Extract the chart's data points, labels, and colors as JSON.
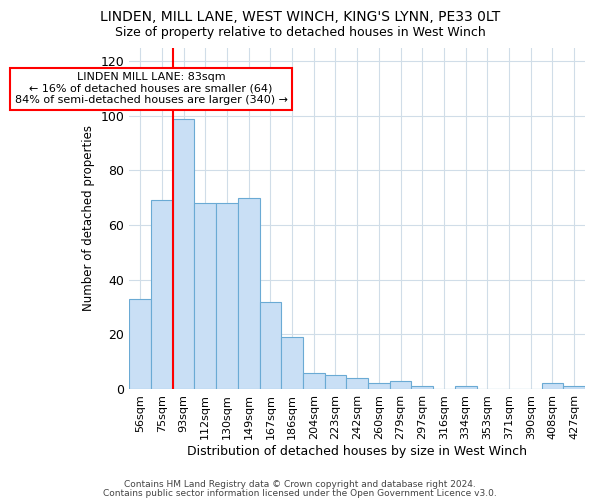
{
  "title_line1": "LINDEN, MILL LANE, WEST WINCH, KING'S LYNN, PE33 0LT",
  "title_line2": "Size of property relative to detached houses in West Winch",
  "xlabel": "Distribution of detached houses by size in West Winch",
  "ylabel": "Number of detached properties",
  "categories": [
    "56sqm",
    "75sqm",
    "93sqm",
    "112sqm",
    "130sqm",
    "149sqm",
    "167sqm",
    "186sqm",
    "204sqm",
    "223sqm",
    "242sqm",
    "260sqm",
    "279sqm",
    "297sqm",
    "316sqm",
    "334sqm",
    "353sqm",
    "371sqm",
    "390sqm",
    "408sqm",
    "427sqm"
  ],
  "values": [
    33,
    69,
    99,
    68,
    68,
    70,
    32,
    19,
    6,
    5,
    4,
    2,
    3,
    1,
    0,
    1,
    0,
    0,
    0,
    2,
    1
  ],
  "bar_color": "#c9dff5",
  "bar_edge_color": "#6aaad4",
  "vline_x": 1.5,
  "vline_color": "red",
  "annotation_title": "LINDEN MILL LANE: 83sqm",
  "annotation_line2": "← 16% of detached houses are smaller (64)",
  "annotation_line3": "84% of semi-detached houses are larger (340) →",
  "annotation_box_color": "white",
  "annotation_box_edge": "red",
  "ylim": [
    0,
    125
  ],
  "yticks": [
    0,
    20,
    40,
    60,
    80,
    100,
    120
  ],
  "footer_line1": "Contains HM Land Registry data © Crown copyright and database right 2024.",
  "footer_line2": "Contains public sector information licensed under the Open Government Licence v3.0.",
  "bg_color": "#ffffff",
  "grid_color": "#d0dde8"
}
